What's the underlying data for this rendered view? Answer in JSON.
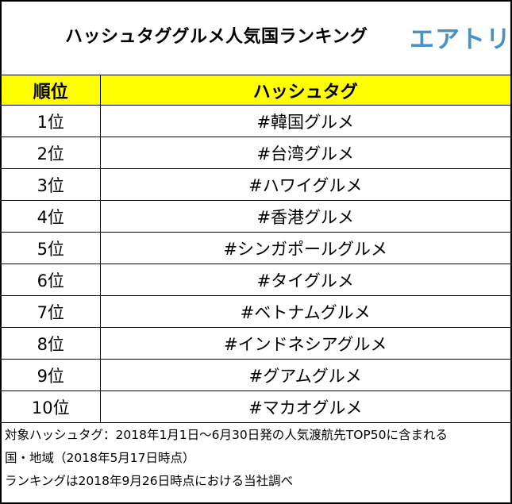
{
  "header": {
    "title": "ハッシュタググルメ人気国ランキング",
    "logo_text": "エアトリ",
    "logo_color": "#4a90c2"
  },
  "table": {
    "header_bg": "#ffff00",
    "columns": [
      "順位",
      "ハッシュタグ"
    ],
    "rows": [
      {
        "rank": "1位",
        "tag": "#韓国グルメ"
      },
      {
        "rank": "2位",
        "tag": "#台湾グルメ"
      },
      {
        "rank": "3位",
        "tag": "#ハワイグルメ"
      },
      {
        "rank": "4位",
        "tag": "#香港グルメ"
      },
      {
        "rank": "5位",
        "tag": "#シンガポールグルメ"
      },
      {
        "rank": "6位",
        "tag": "#タイグルメ"
      },
      {
        "rank": "7位",
        "tag": "#ベトナムグルメ"
      },
      {
        "rank": "8位",
        "tag": "#インドネシアグルメ"
      },
      {
        "rank": "9位",
        "tag": "#グアムグルメ"
      },
      {
        "rank": "10位",
        "tag": "#マカオグルメ"
      }
    ]
  },
  "notes": [
    "対象ハッシュタグ：2018年1月1日～6月30日発の人気渡航先TOP50に含まれる",
    "国・地域（2018年5月17日時点）",
    "ランキングは2018年9月26日時点における当社調べ"
  ]
}
